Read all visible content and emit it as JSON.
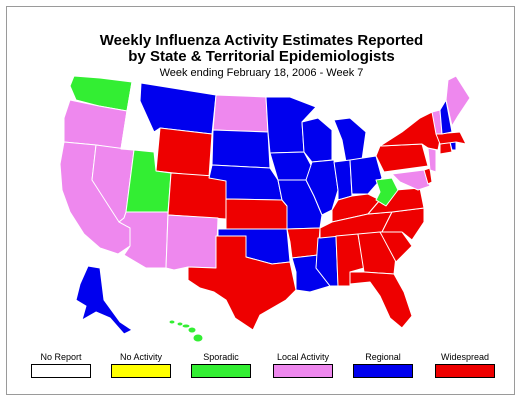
{
  "map": {
    "title_line1": "Weekly Influenza Activity Estimates Reported",
    "title_line2": "by State & Territorial Epidemiologists",
    "subtitle": "Week ending February 18, 2006 - Week 7"
  },
  "legend": [
    {
      "key": "none",
      "label": "No Report",
      "color": "#ffffff"
    },
    {
      "key": "noact",
      "label": "No Activity",
      "color": "#ffff00"
    },
    {
      "key": "sporadic",
      "label": "Sporadic",
      "color": "#33ee33"
    },
    {
      "key": "local",
      "label": "Local Activity",
      "color": "#ee88ee"
    },
    {
      "key": "regional",
      "label": "Regional",
      "color": "#0000ee"
    },
    {
      "key": "widespread",
      "label": "Widespread",
      "color": "#ee0000"
    }
  ],
  "states": {
    "WA": "sporadic",
    "OR": "local",
    "CA": "local",
    "NV": "local",
    "ID": "none",
    "MT": "regional",
    "WY": "widespread",
    "UT": "sporadic",
    "AZ": "local",
    "CO": "widespread",
    "NM": "local",
    "ND": "local",
    "SD": "regional",
    "NE": "regional",
    "KS": "widespread",
    "OK": "regional",
    "TX": "widespread",
    "MN": "regional",
    "IA": "regional",
    "MO": "regional",
    "AR": "widespread",
    "LA": "regional",
    "WI": "regional",
    "IL": "regional",
    "MS": "regional",
    "MI": "regional",
    "IN": "regional",
    "OH": "regional",
    "KY": "widespread",
    "TN": "widespread",
    "AL": "widespread",
    "GA": "widespread",
    "FL": "widespread",
    "SC": "widespread",
    "NC": "widespread",
    "VA": "widespread",
    "WV": "sporadic",
    "PA": "widespread",
    "NY": "widespread",
    "NJ": "local",
    "DE": "widespread",
    "MD": "local",
    "VT": "local",
    "NH": "regional",
    "ME": "local",
    "MA": "widespread",
    "CT": "widespread",
    "RI": "regional",
    "AK": "regional",
    "HI": "sporadic"
  }
}
